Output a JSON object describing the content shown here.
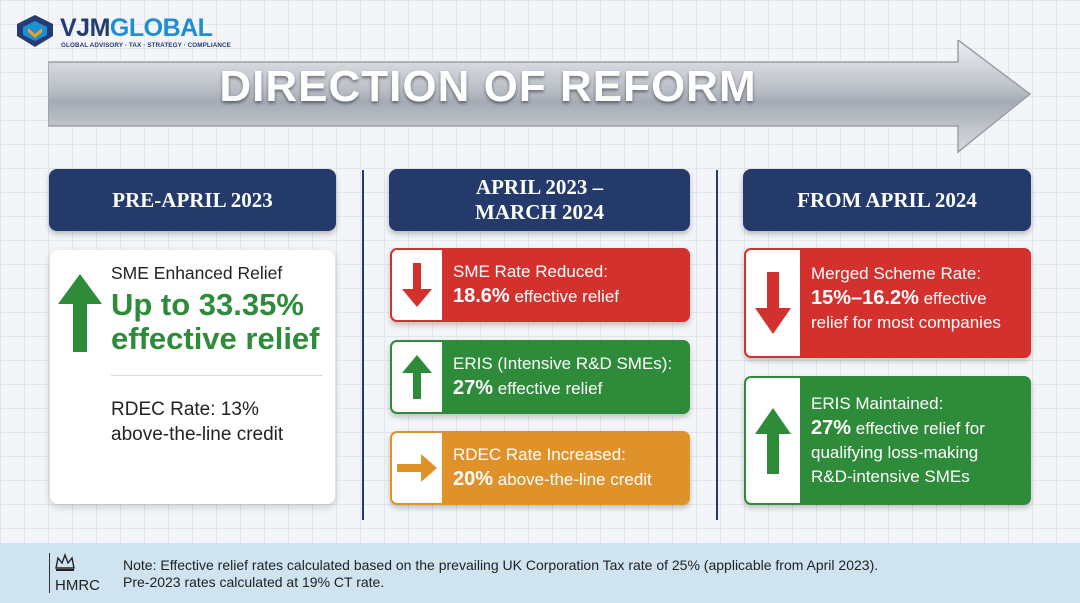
{
  "brand": {
    "name_part1": "VJM",
    "name_part2": "GLOBAL",
    "tagline": "GLOBAL ADVISORY · TAX · STRATEGY · COMPLIANCE"
  },
  "title": "DIRECTION OF REFORM",
  "columns": [
    {
      "header": "PRE-APRIL 2023",
      "card": {
        "label": "SME Enhanced Relief",
        "big_line1": "Up to 33.35%",
        "big_line2": "effective relief",
        "rdec_line1": "RDEC Rate: 13%",
        "rdec_line2": "above-the-line credit"
      }
    },
    {
      "header_line1": "APRIL 2023 –",
      "header_line2": "MARCH 2024",
      "items": [
        {
          "title": "SME Rate Reduced:",
          "value": "18.6%",
          "value_rest": " effective relief",
          "color": "#d3312d",
          "icon": "arrow-down-icon"
        },
        {
          "title": "ERIS (Intensive R&D SMEs):",
          "value": "27%",
          "value_rest": " effective relief",
          "color": "#2e8b3a",
          "icon": "arrow-up-icon"
        },
        {
          "title": "RDEC Rate Increased:",
          "value": "20%",
          "value_rest": " above-the-line credit",
          "color": "#e0922a",
          "icon": "arrow-right-icon"
        }
      ]
    },
    {
      "header": "FROM APRIL 2024",
      "items": [
        {
          "title": "Merged Scheme Rate:",
          "value": "15%–16.2%",
          "value_rest": " effective",
          "line3": "relief for most companies",
          "color": "#d3312d",
          "icon": "arrow-down-icon"
        },
        {
          "title": "ERIS Maintained:",
          "value": "27%",
          "value_rest": " effective relief for",
          "line3": "qualifying loss-making",
          "line4": "R&D-intensive SMEs",
          "color": "#2e8b3a",
          "icon": "arrow-up-icon"
        }
      ]
    }
  ],
  "footer": {
    "logo_text": "HMRC",
    "note_line1": "Note: Effective relief rates calculated based on the prevailing UK Corporation Tax rate of 25% (applicable from April 2023).",
    "note_line2": "Pre-2023 rates calculated at 19% CT rate."
  }
}
